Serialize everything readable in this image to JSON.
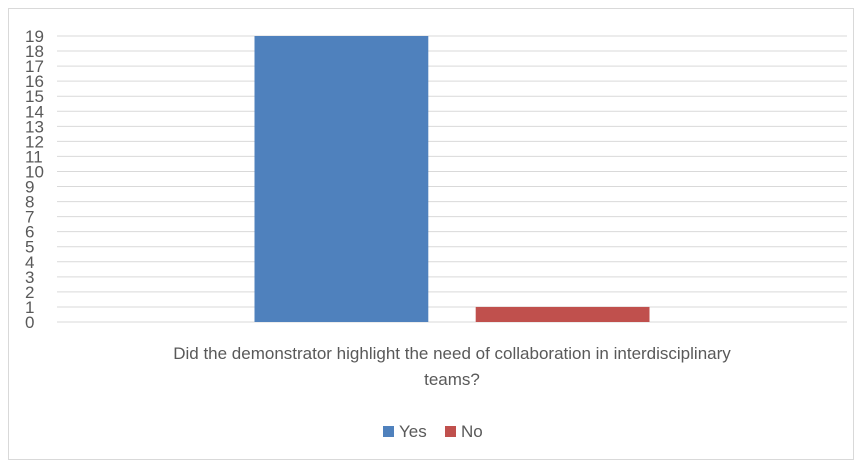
{
  "chart_data": {
    "type": "bar",
    "categories": [
      "Did the demonstrator highlight the need of collaboration in interdisciplinary teams?"
    ],
    "category_lines": [
      "Did the demonstrator highlight the need of collaboration in interdisciplinary",
      "teams?"
    ],
    "series": [
      {
        "name": "Yes",
        "values": [
          19
        ],
        "color": "#4f81bd"
      },
      {
        "name": "No",
        "values": [
          1
        ],
        "color": "#c0504d"
      }
    ],
    "title": "",
    "xlabel": "",
    "ylabel": "",
    "ylim": [
      0,
      19
    ],
    "yticks": [
      0,
      1,
      2,
      3,
      4,
      5,
      6,
      7,
      8,
      9,
      10,
      11,
      12,
      13,
      14,
      15,
      16,
      17,
      18,
      19
    ],
    "grid": true,
    "legend": "bottom",
    "grid_color": "#d9d9d9",
    "text_color": "#595959"
  }
}
